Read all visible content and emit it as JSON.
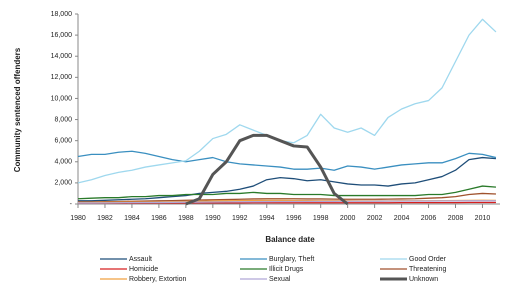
{
  "chart_data": {
    "type": "line",
    "ylabel": "Community sentenced offenders",
    "xlabel": "Balance date",
    "x": [
      1980,
      1981,
      1982,
      1983,
      1984,
      1985,
      1986,
      1987,
      1988,
      1989,
      1990,
      1991,
      1992,
      1993,
      1994,
      1995,
      1996,
      1997,
      1998,
      1999,
      2000,
      2001,
      2002,
      2003,
      2004,
      2005,
      2006,
      2007,
      2008,
      2009,
      2010,
      2011
    ],
    "xlim": [
      1980,
      2011.3
    ],
    "xticks": [
      1980,
      1982,
      1984,
      1986,
      1988,
      1990,
      1992,
      1994,
      1996,
      1998,
      2000,
      2002,
      2004,
      2006,
      2008,
      2010
    ],
    "ylim": [
      0,
      18000
    ],
    "yticks": [
      {
        "value": 0,
        "label": "-"
      },
      {
        "value": 2000,
        "label": "2,000"
      },
      {
        "value": 4000,
        "label": "4,000"
      },
      {
        "value": 6000,
        "label": "6,000"
      },
      {
        "value": 8000,
        "label": "8,000"
      },
      {
        "value": 10000,
        "label": "10,000"
      },
      {
        "value": 12000,
        "label": "12,000"
      },
      {
        "value": 14000,
        "label": "14,000"
      },
      {
        "value": 16000,
        "label": "16,000"
      },
      {
        "value": 18000,
        "label": "18,000"
      }
    ],
    "legend": "bottom",
    "series": [
      {
        "name": "Assault",
        "color": "#1f4e79",
        "width": 1.3,
        "values": [
          300,
          300,
          350,
          400,
          450,
          500,
          600,
          700,
          800,
          1000,
          1100,
          1200,
          1400,
          1700,
          2300,
          2500,
          2400,
          2200,
          2300,
          2100,
          1900,
          1800,
          1800,
          1700,
          1900,
          2000,
          2300,
          2600,
          3200,
          4200,
          4400,
          4300
        ]
      },
      {
        "name": "Burglary, Theft",
        "color": "#3a8fc0",
        "width": 1.3,
        "values": [
          4500,
          4700,
          4700,
          4900,
          5000,
          4800,
          4500,
          4200,
          4000,
          4200,
          4400,
          4000,
          3800,
          3700,
          3600,
          3500,
          3300,
          3300,
          3400,
          3200,
          3600,
          3500,
          3300,
          3500,
          3700,
          3800,
          3900,
          3900,
          4300,
          4800,
          4700,
          4400
        ]
      },
      {
        "name": "Good Order",
        "color": "#9fd8ee",
        "width": 1.3,
        "values": [
          2000,
          2300,
          2700,
          3000,
          3200,
          3500,
          3700,
          3900,
          4100,
          5000,
          6200,
          6600,
          7500,
          7000,
          6500,
          6000,
          5800,
          6500,
          8500,
          7200,
          6800,
          7200,
          6500,
          8200,
          9000,
          9500,
          9800,
          11000,
          13500,
          16000,
          17500,
          16300
        ]
      },
      {
        "name": "Homicide",
        "color": "#d62020",
        "width": 1.3,
        "values": [
          80,
          80,
          90,
          90,
          90,
          100,
          100,
          100,
          100,
          110,
          110,
          110,
          110,
          120,
          120,
          120,
          120,
          120,
          120,
          120,
          120,
          120,
          120,
          120,
          130,
          130,
          130,
          130,
          130,
          140,
          140,
          140
        ]
      },
      {
        "name": "Illicit Drugs",
        "color": "#2a7a2a",
        "width": 1.3,
        "values": [
          500,
          550,
          600,
          600,
          700,
          700,
          800,
          800,
          900,
          900,
          900,
          1000,
          1000,
          1100,
          1000,
          1000,
          900,
          900,
          900,
          800,
          800,
          800,
          800,
          800,
          800,
          800,
          900,
          900,
          1100,
          1400,
          1700,
          1600
        ]
      },
      {
        "name": "Threatening",
        "color": "#a0522d",
        "width": 1.3,
        "values": [
          200,
          200,
          220,
          240,
          260,
          280,
          300,
          320,
          350,
          380,
          400,
          420,
          450,
          480,
          500,
          500,
          500,
          480,
          480,
          460,
          450,
          450,
          450,
          460,
          480,
          500,
          550,
          600,
          700,
          900,
          1000,
          950
        ]
      },
      {
        "name": "Robbery, Extortion",
        "color": "#f0a040",
        "width": 1.3,
        "values": [
          150,
          150,
          160,
          170,
          180,
          190,
          200,
          220,
          240,
          260,
          280,
          300,
          320,
          330,
          340,
          340,
          330,
          320,
          310,
          300,
          300,
          290,
          290,
          290,
          300,
          300,
          310,
          320,
          330,
          340,
          350,
          340
        ]
      },
      {
        "name": "Sexual",
        "color": "#b0a8d8",
        "width": 1.3,
        "values": [
          100,
          100,
          110,
          120,
          130,
          140,
          150,
          160,
          170,
          180,
          190,
          200,
          210,
          220,
          230,
          240,
          240,
          250,
          250,
          250,
          260,
          260,
          260,
          270,
          270,
          280,
          280,
          290,
          290,
          300,
          300,
          300
        ]
      },
      {
        "name": "Unknown",
        "color": "#555555",
        "width": 3,
        "values": [
          null,
          null,
          null,
          null,
          null,
          null,
          null,
          null,
          0,
          500,
          2800,
          4000,
          6000,
          6500,
          6500,
          6000,
          5500,
          5400,
          3500,
          1000,
          0,
          null,
          null,
          null,
          null,
          null,
          null,
          null,
          null,
          null,
          null,
          null
        ]
      }
    ]
  }
}
